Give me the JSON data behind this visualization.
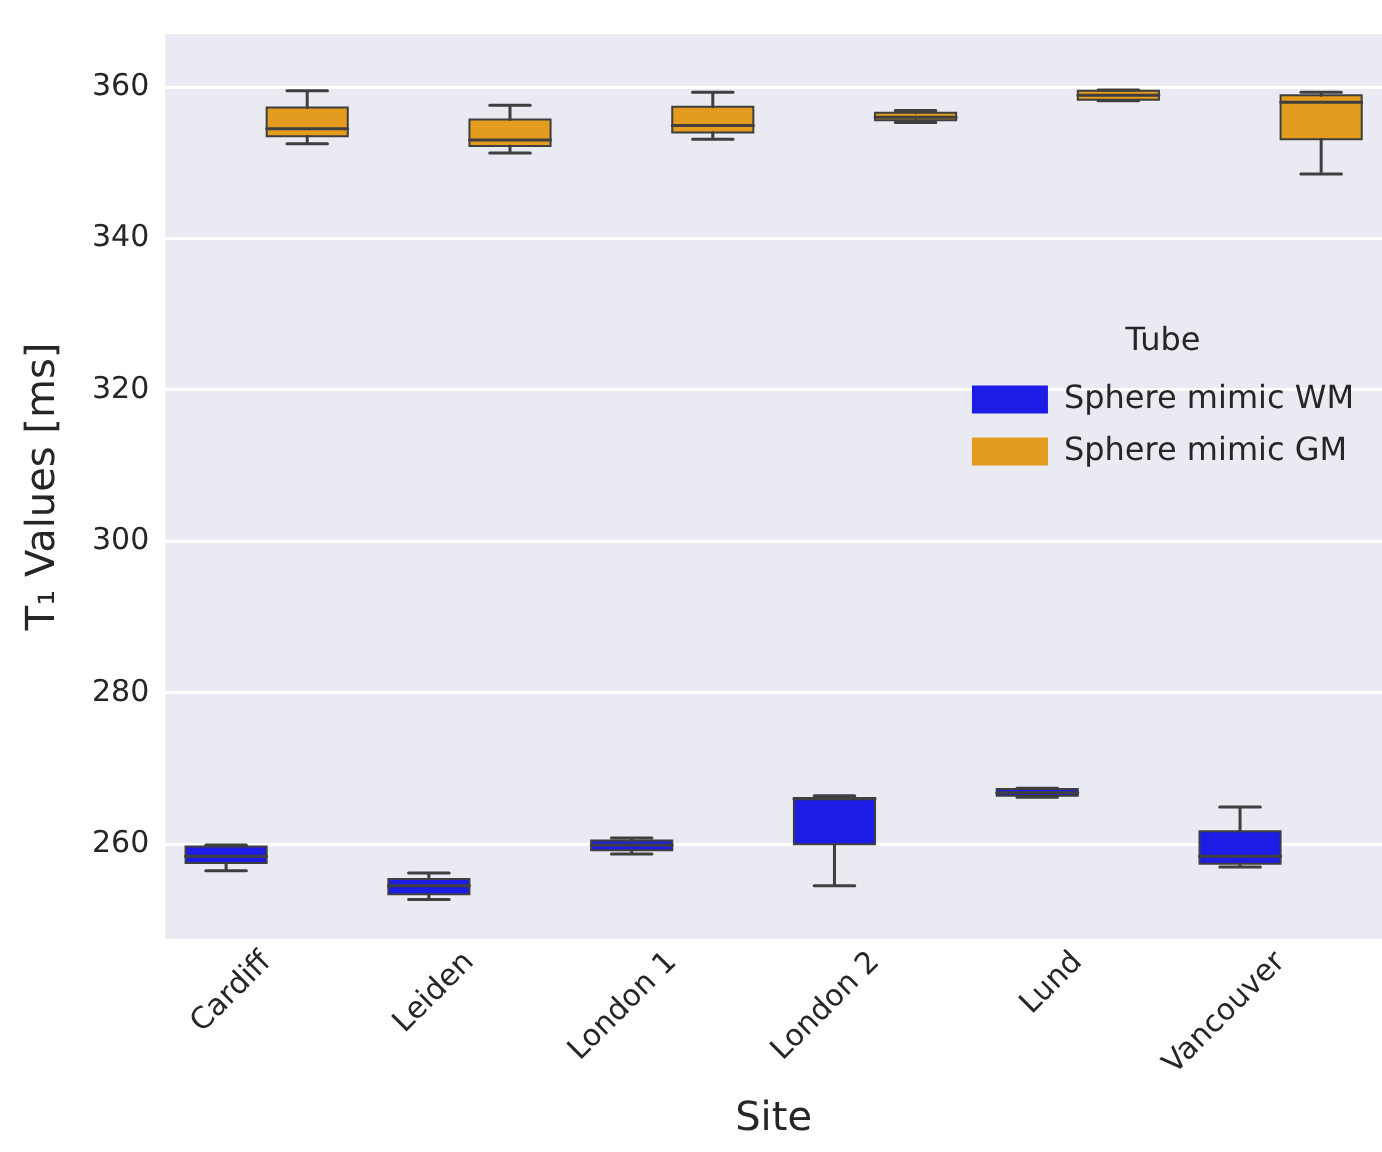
{
  "chart_data": {
    "type": "box",
    "xlabel": "Site",
    "ylabel": "T₁ Values [ms]",
    "legend_title": "Tube",
    "legend": "right",
    "grid": "y",
    "categories": [
      "Cardiff",
      "Leiden",
      "London 1",
      "London 2",
      "Lund",
      "Vancouver"
    ],
    "ylim": [
      247.5,
      367
    ],
    "yticks": [
      260,
      280,
      300,
      320,
      340,
      360
    ],
    "series": [
      {
        "name": "Sphere mimic WM",
        "color": "#1c1ce6",
        "boxes": [
          {
            "low": 256.5,
            "q1": 257.5,
            "median": 258.4,
            "q3": 259.7,
            "high": 259.9
          },
          {
            "low": 252.7,
            "q1": 253.4,
            "median": 254.5,
            "q3": 255.4,
            "high": 256.2
          },
          {
            "low": 258.7,
            "q1": 259.2,
            "median": 259.9,
            "q3": 260.5,
            "high": 260.8
          },
          {
            "low": 254.5,
            "q1": 260.0,
            "median": 266.0,
            "q3": 266.1,
            "high": 266.4
          },
          {
            "low": 266.2,
            "q1": 266.4,
            "median": 266.8,
            "q3": 267.3,
            "high": 267.4
          },
          {
            "low": 257.0,
            "q1": 257.4,
            "median": 258.4,
            "q3": 261.7,
            "high": 264.9
          }
        ]
      },
      {
        "name": "Sphere mimic GM",
        "color": "#e39c1e",
        "boxes": [
          {
            "low": 352.5,
            "q1": 353.5,
            "median": 354.5,
            "q3": 357.3,
            "high": 359.5
          },
          {
            "low": 351.3,
            "q1": 352.2,
            "median": 353.0,
            "q3": 355.7,
            "high": 357.6
          },
          {
            "low": 353.1,
            "q1": 354.0,
            "median": 354.9,
            "q3": 357.4,
            "high": 359.3
          },
          {
            "low": 355.3,
            "q1": 355.6,
            "median": 356.0,
            "q3": 356.6,
            "high": 356.9
          },
          {
            "low": 358.2,
            "q1": 358.3,
            "median": 358.9,
            "q3": 359.5,
            "high": 359.6
          },
          {
            "low": 348.5,
            "q1": 353.1,
            "median": 358.0,
            "q3": 358.9,
            "high": 359.3
          }
        ]
      }
    ]
  }
}
